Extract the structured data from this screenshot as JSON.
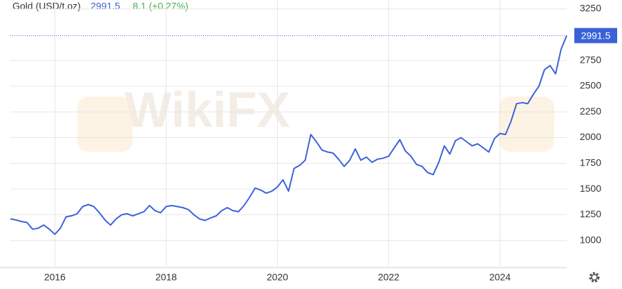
{
  "chart_data": {
    "type": "line",
    "title": "Gold (USD/t.oz)",
    "last_value": 2991.5,
    "change_label": "8.1 (+0.27%)",
    "watermark": "WikiFX",
    "color": "#3a62d8",
    "x": [
      2015.2,
      2015.3,
      2015.4,
      2015.5,
      2015.6,
      2015.7,
      2015.8,
      2015.9,
      2016.0,
      2016.1,
      2016.2,
      2016.3,
      2016.4,
      2016.5,
      2016.6,
      2016.7,
      2016.8,
      2016.9,
      2017.0,
      2017.1,
      2017.2,
      2017.3,
      2017.4,
      2017.5,
      2017.6,
      2017.7,
      2017.8,
      2017.9,
      2018.0,
      2018.1,
      2018.2,
      2018.3,
      2018.4,
      2018.5,
      2018.6,
      2018.7,
      2018.8,
      2018.9,
      2019.0,
      2019.1,
      2019.2,
      2019.3,
      2019.4,
      2019.5,
      2019.6,
      2019.7,
      2019.8,
      2019.9,
      2020.0,
      2020.1,
      2020.2,
      2020.3,
      2020.4,
      2020.5,
      2020.6,
      2020.7,
      2020.8,
      2020.9,
      2021.0,
      2021.1,
      2021.2,
      2021.3,
      2021.4,
      2021.5,
      2021.6,
      2021.7,
      2021.8,
      2021.9,
      2022.0,
      2022.1,
      2022.2,
      2022.3,
      2022.4,
      2022.5,
      2022.6,
      2022.7,
      2022.8,
      2022.9,
      2023.0,
      2023.1,
      2023.2,
      2023.3,
      2023.4,
      2023.5,
      2023.6,
      2023.7,
      2023.8,
      2023.9,
      2024.0,
      2024.1,
      2024.2,
      2024.3,
      2024.4,
      2024.5,
      2024.6,
      2024.7,
      2024.8,
      2024.9,
      2025.0,
      2025.1,
      2025.2
    ],
    "values": [
      1210,
      1200,
      1185,
      1175,
      1110,
      1120,
      1150,
      1110,
      1060,
      1120,
      1230,
      1240,
      1260,
      1330,
      1350,
      1330,
      1270,
      1200,
      1150,
      1210,
      1250,
      1260,
      1240,
      1260,
      1280,
      1340,
      1290,
      1270,
      1330,
      1340,
      1330,
      1320,
      1300,
      1250,
      1210,
      1195,
      1220,
      1240,
      1290,
      1320,
      1290,
      1280,
      1340,
      1420,
      1510,
      1490,
      1460,
      1480,
      1520,
      1590,
      1480,
      1700,
      1730,
      1780,
      2030,
      1960,
      1880,
      1860,
      1850,
      1790,
      1720,
      1780,
      1890,
      1780,
      1810,
      1760,
      1790,
      1800,
      1820,
      1900,
      1980,
      1870,
      1820,
      1740,
      1720,
      1660,
      1640,
      1760,
      1920,
      1840,
      1970,
      2000,
      1960,
      1920,
      1940,
      1900,
      1860,
      1990,
      2040,
      2030,
      2160,
      2330,
      2340,
      2330,
      2420,
      2500,
      2660,
      2700,
      2620,
      2860,
      2991.5
    ],
    "xlim": [
      2015.2,
      2025.2
    ],
    "xticks": [
      2016,
      2018,
      2020,
      2022,
      2024
    ],
    "ylim": [
      750,
      3250
    ],
    "yticks": [
      1000,
      1250,
      1500,
      1750,
      2000,
      2250,
      2500,
      2750,
      3250
    ],
    "grid": true
  }
}
